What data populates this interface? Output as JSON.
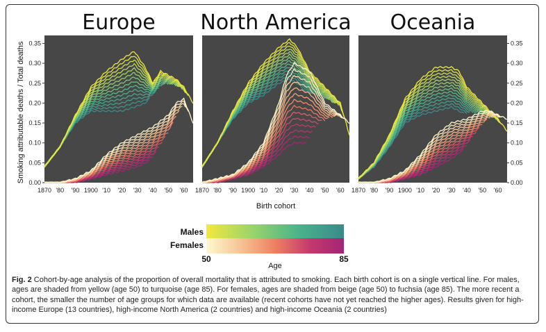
{
  "chart_data": {
    "type": "line",
    "ylabel": "Smoking attributable deaths / Total deaths",
    "xlabel": "Birth cohort",
    "y_ticks": [
      "0.00",
      "0.05",
      "0.10",
      "0.15",
      "0.20",
      "0.25",
      "0.30",
      "0.35"
    ],
    "x_ticks": [
      "1870",
      "'80",
      "'90",
      "1900",
      "'10",
      "'20",
      "'30",
      "'40",
      "'50",
      "'60"
    ],
    "ylim": [
      0,
      0.37
    ],
    "xlim": [
      1870,
      1966
    ],
    "panels": [
      {
        "title": "Europe",
        "males_peak": {
          "x": [
            1870,
            1880,
            1890,
            1900,
            1910,
            1920,
            1928,
            1935,
            1940,
            1945,
            1950,
            1955,
            1960,
            1966
          ],
          "y": [
            0.04,
            0.09,
            0.17,
            0.24,
            0.28,
            0.31,
            0.33,
            0.29,
            0.25,
            0.28,
            0.27,
            0.26,
            0.24,
            0.2
          ]
        },
        "males_base": {
          "x": [
            1870,
            1880,
            1890,
            1900,
            1910,
            1920,
            1928,
            1935,
            1940,
            1945,
            1950,
            1955,
            1960,
            1966
          ],
          "y": [
            0.04,
            0.09,
            0.15,
            0.18,
            0.18,
            0.18,
            0.19,
            0.2,
            0.22,
            0.23,
            0.23,
            0.22,
            0.2,
            0.15
          ]
        },
        "females_peak": {
          "x": [
            1870,
            1880,
            1890,
            1900,
            1910,
            1920,
            1930,
            1940,
            1950,
            1955,
            1960,
            1966
          ],
          "y": [
            0.0,
            0.0,
            0.01,
            0.03,
            0.07,
            0.1,
            0.12,
            0.14,
            0.17,
            0.2,
            0.21,
            0.15
          ]
        },
        "females_base": {
          "x": [
            1870,
            1880,
            1890,
            1900,
            1910,
            1920,
            1930,
            1940,
            1950,
            1955,
            1960,
            1966
          ],
          "y": [
            0.0,
            0.0,
            0.0,
            0.01,
            0.02,
            0.03,
            0.04,
            0.06,
            0.09,
            0.12,
            0.14,
            0.14
          ]
        }
      },
      {
        "title": "North America",
        "males_peak": {
          "x": [
            1870,
            1880,
            1890,
            1900,
            1910,
            1920,
            1927,
            1932,
            1940,
            1950,
            1960,
            1966
          ],
          "y": [
            0.04,
            0.1,
            0.18,
            0.25,
            0.3,
            0.34,
            0.36,
            0.34,
            0.28,
            0.24,
            0.2,
            0.12
          ]
        },
        "males_base": {
          "x": [
            1870,
            1880,
            1890,
            1900,
            1910,
            1920,
            1927,
            1932,
            1940,
            1950,
            1960,
            1966
          ],
          "y": [
            0.04,
            0.1,
            0.16,
            0.2,
            0.22,
            0.25,
            0.26,
            0.25,
            0.22,
            0.19,
            0.16,
            0.12
          ]
        },
        "females_peak": {
          "x": [
            1870,
            1880,
            1890,
            1900,
            1910,
            1920,
            1925,
            1930,
            1940,
            1950,
            1960,
            1966
          ],
          "y": [
            0.0,
            0.01,
            0.02,
            0.05,
            0.1,
            0.2,
            0.27,
            0.3,
            0.28,
            0.2,
            0.17,
            0.15
          ]
        },
        "females_base": {
          "x": [
            1870,
            1880,
            1890,
            1900,
            1910,
            1920,
            1925,
            1930,
            1940,
            1950,
            1960,
            1966
          ],
          "y": [
            0.0,
            0.0,
            0.01,
            0.02,
            0.04,
            0.07,
            0.09,
            0.1,
            0.1,
            0.12,
            0.15,
            0.15
          ]
        }
      },
      {
        "title": "Oceania",
        "males_peak": {
          "x": [
            1870,
            1880,
            1890,
            1900,
            1910,
            1920,
            1930,
            1935,
            1940,
            1950,
            1960,
            1966
          ],
          "y": [
            0.01,
            0.05,
            0.12,
            0.21,
            0.26,
            0.29,
            0.29,
            0.28,
            0.24,
            0.2,
            0.16,
            0.13
          ]
        },
        "males_base": {
          "x": [
            1870,
            1880,
            1890,
            1900,
            1910,
            1920,
            1930,
            1935,
            1940,
            1950,
            1960,
            1966
          ],
          "y": [
            0.01,
            0.04,
            0.09,
            0.15,
            0.17,
            0.18,
            0.19,
            0.18,
            0.17,
            0.15,
            0.14,
            0.13
          ]
        },
        "females_peak": {
          "x": [
            1870,
            1880,
            1890,
            1900,
            1910,
            1920,
            1930,
            1940,
            1950,
            1955,
            1960,
            1966
          ],
          "y": [
            0.0,
            0.0,
            0.01,
            0.03,
            0.07,
            0.12,
            0.15,
            0.16,
            0.18,
            0.18,
            0.17,
            0.16
          ]
        },
        "females_base": {
          "x": [
            1870,
            1880,
            1890,
            1900,
            1910,
            1920,
            1930,
            1940,
            1950,
            1955,
            1960,
            1966
          ],
          "y": [
            0.0,
            0.0,
            0.0,
            0.01,
            0.02,
            0.04,
            0.06,
            0.09,
            0.12,
            0.14,
            0.15,
            0.16
          ]
        }
      }
    ],
    "legend": {
      "males_label": "Males",
      "females_label": "Females",
      "age_min": "50",
      "age_max": "85",
      "age_title": "Age",
      "males_colors": [
        "#f2e83d",
        "#9bd46a",
        "#4ab48a",
        "#3a8a8c"
      ],
      "females_colors": [
        "#fff8d0",
        "#f6c394",
        "#ee8062",
        "#c53a6c",
        "#a32576"
      ]
    }
  },
  "caption": {
    "fig_label": "Fig. 2",
    "text": "Cohort-by-age analysis of the proportion of overall mortality that is attributed to smoking. Each birth cohort is on a single vertical line. For males, ages are shaded from yellow (age 50) to turquoise (age 85). For females, ages are shaded from beige (age 50) to fuchsia (age 85). The more recent a cohort, the smaller the number of age groups for which data are available (recent cohorts have not yet reached the higher ages). Results given for high-income Europe (13 countries), high-income North America (2 countries) and high-income Oceania (2 countries)"
  },
  "colors": {
    "panel_bg": "#474747"
  }
}
